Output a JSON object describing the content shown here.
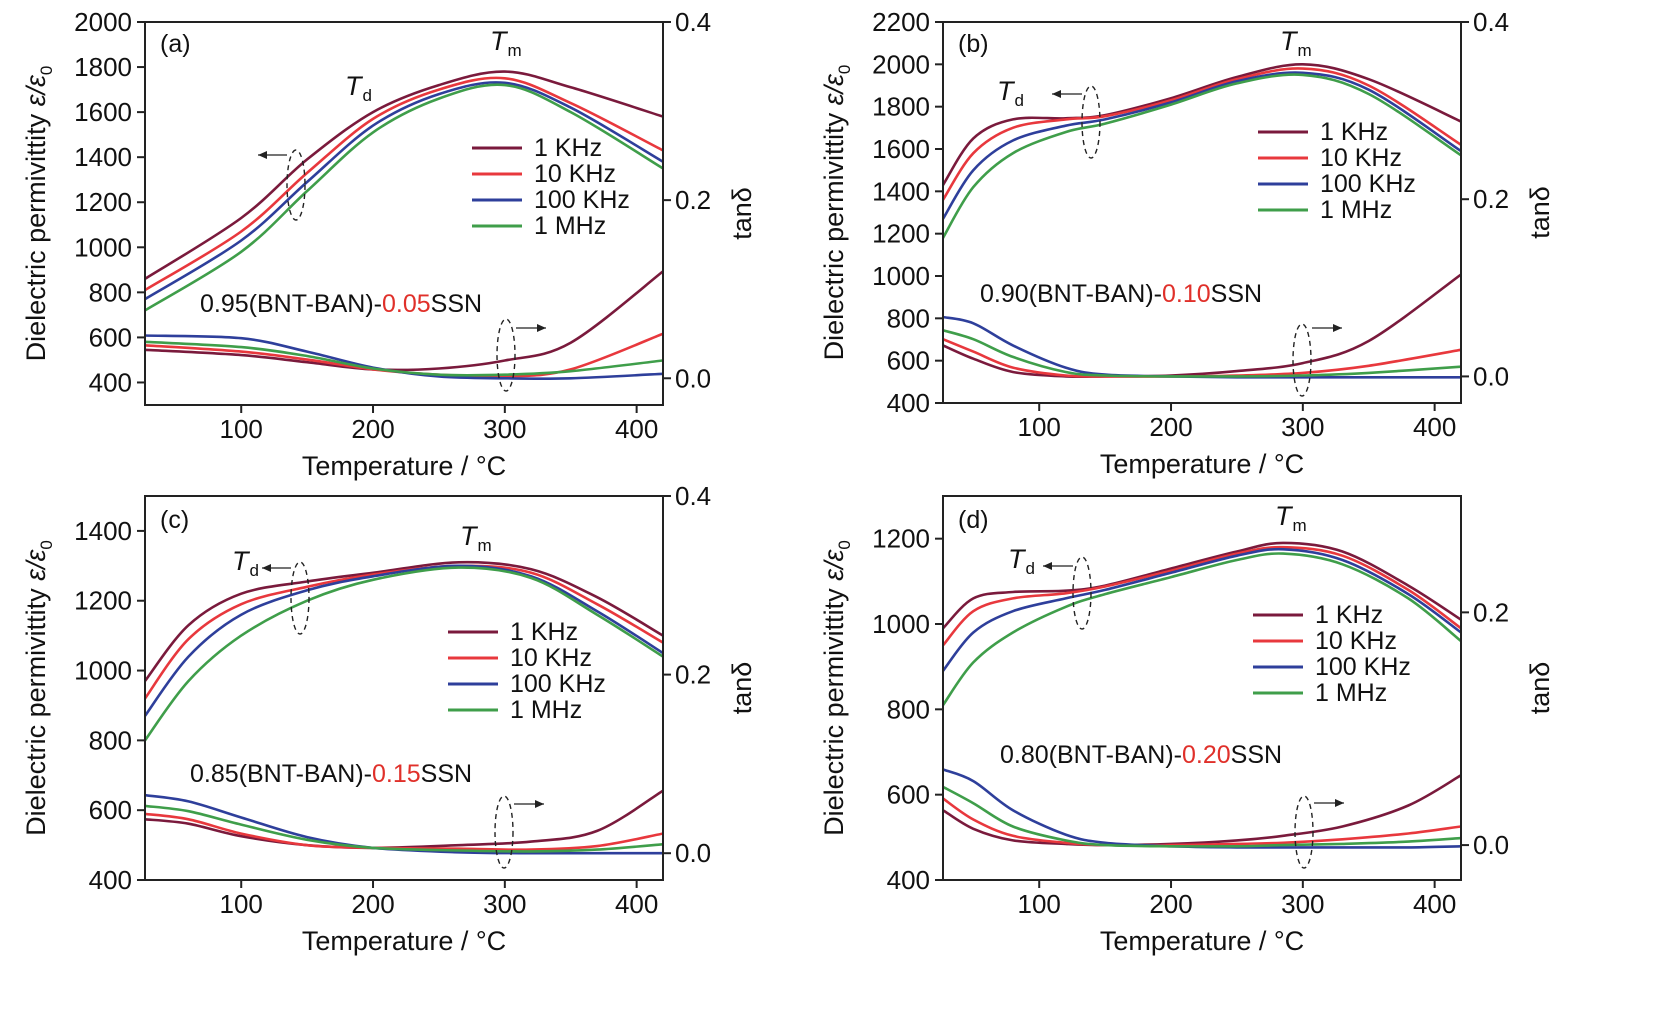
{
  "figure": {
    "xlabel": "Temperature / °C",
    "ylabel_main": "Dielectric permivittity ",
    "ylabel_sym": "ε/ε",
    "ylabel_sub": "0",
    "y2label": "tanδ",
    "td_sym": "T",
    "td_sub": "d",
    "tm_sym": "T",
    "tm_sub": "m"
  },
  "legend": [
    "1 KHz",
    "10 KHz",
    "100 KHz",
    "1 MHz"
  ],
  "colors": {
    "1 KHz": "#7a1a3c",
    "10 KHz": "#e8383d",
    "100 KHz": "#2e3f9b",
    "1 MHz": "#3f9e4a",
    "highlight": "#e0302a"
  },
  "chart_data": [
    {
      "type": "line",
      "panel": "(a)",
      "composition": {
        "prefix": "0.95(BNT-BAN)-",
        "value": "0.05",
        "suffix": "SSN"
      },
      "x_label": "Temperature / °C",
      "xlim": [
        27,
        420
      ],
      "xticks": [
        100,
        200,
        300,
        400
      ],
      "ylim": [
        300,
        2000
      ],
      "yticks": [
        400,
        600,
        800,
        1000,
        1200,
        1400,
        1600,
        1800,
        2000
      ],
      "y2lim": [
        -0.03,
        0.4
      ],
      "y2ticks": [
        "0.0",
        "0.2",
        "0.4"
      ],
      "y2tick_values": [
        0.0,
        0.2,
        0.4
      ],
      "permittivity": [
        {
          "name": "1 KHz",
          "x": [
            27,
            100,
            150,
            200,
            250,
            300,
            350,
            420
          ],
          "y": [
            860,
            1130,
            1390,
            1600,
            1720,
            1780,
            1710,
            1580
          ]
        },
        {
          "name": "10 KHz",
          "x": [
            27,
            100,
            150,
            200,
            250,
            300,
            350,
            420
          ],
          "y": [
            810,
            1070,
            1330,
            1570,
            1700,
            1750,
            1640,
            1430
          ]
        },
        {
          "name": "100 KHz",
          "x": [
            27,
            100,
            150,
            200,
            250,
            300,
            350,
            420
          ],
          "y": [
            770,
            1030,
            1290,
            1540,
            1680,
            1730,
            1620,
            1380
          ]
        },
        {
          "name": "1 MHz",
          "x": [
            27,
            100,
            150,
            200,
            250,
            300,
            350,
            420
          ],
          "y": [
            720,
            980,
            1250,
            1510,
            1660,
            1720,
            1600,
            1350
          ]
        }
      ],
      "tan_delta": [
        {
          "name": "1 KHz",
          "x": [
            27,
            100,
            150,
            200,
            250,
            300,
            350,
            420
          ],
          "y": [
            0.032,
            0.026,
            0.018,
            0.01,
            0.011,
            0.02,
            0.04,
            0.12
          ]
        },
        {
          "name": "10 KHz",
          "x": [
            27,
            100,
            150,
            200,
            250,
            300,
            350,
            420
          ],
          "y": [
            0.037,
            0.03,
            0.021,
            0.01,
            0.004,
            0.002,
            0.01,
            0.05
          ]
        },
        {
          "name": "100 KHz",
          "x": [
            27,
            100,
            150,
            200,
            250,
            300,
            350,
            420
          ],
          "y": [
            0.048,
            0.045,
            0.03,
            0.012,
            0.002,
            0.0,
            0.0,
            0.005
          ]
        },
        {
          "name": "1 MHz",
          "x": [
            27,
            100,
            150,
            200,
            250,
            300,
            350,
            420
          ],
          "y": [
            0.041,
            0.035,
            0.025,
            0.011,
            0.004,
            0.004,
            0.008,
            0.02
          ]
        }
      ]
    },
    {
      "type": "line",
      "panel": "(b)",
      "composition": {
        "prefix": "0.90(BNT-BAN)-",
        "value": "0.10",
        "suffix": "SSN"
      },
      "x_label": "Temperature / °C",
      "xlim": [
        27,
        420
      ],
      "xticks": [
        100,
        200,
        300,
        400
      ],
      "ylim": [
        400,
        2200
      ],
      "yticks": [
        400,
        600,
        800,
        1000,
        1200,
        1400,
        1600,
        1800,
        2000,
        2200
      ],
      "y2lim": [
        -0.03,
        0.4
      ],
      "y2ticks": [
        "0.0",
        "0.2",
        "0.4"
      ],
      "y2tick_values": [
        0.0,
        0.2,
        0.4
      ],
      "permittivity": [
        {
          "name": "1 KHz",
          "x": [
            27,
            50,
            80,
            120,
            150,
            200,
            250,
            300,
            350,
            420
          ],
          "y": [
            1430,
            1650,
            1740,
            1745,
            1760,
            1840,
            1940,
            2000,
            1930,
            1730
          ]
        },
        {
          "name": "10 KHz",
          "x": [
            27,
            50,
            80,
            120,
            150,
            200,
            250,
            300,
            350,
            420
          ],
          "y": [
            1360,
            1580,
            1700,
            1740,
            1755,
            1830,
            1930,
            1980,
            1900,
            1620
          ]
        },
        {
          "name": "100 KHz",
          "x": [
            27,
            50,
            80,
            120,
            150,
            200,
            250,
            300,
            350,
            420
          ],
          "y": [
            1270,
            1500,
            1640,
            1710,
            1740,
            1820,
            1920,
            1960,
            1880,
            1590
          ]
        },
        {
          "name": "1 MHz",
          "x": [
            27,
            50,
            80,
            120,
            150,
            200,
            250,
            300,
            350,
            420
          ],
          "y": [
            1180,
            1420,
            1580,
            1680,
            1720,
            1810,
            1910,
            1950,
            1860,
            1570
          ]
        }
      ],
      "tan_delta": [
        {
          "name": "1 KHz",
          "x": [
            27,
            50,
            80,
            120,
            150,
            200,
            250,
            300,
            350,
            420
          ],
          "y": [
            0.035,
            0.02,
            0.005,
            0.0,
            0.0,
            0.001,
            0.006,
            0.015,
            0.04,
            0.115
          ]
        },
        {
          "name": "10 KHz",
          "x": [
            27,
            50,
            80,
            120,
            150,
            200,
            250,
            300,
            350,
            420
          ],
          "y": [
            0.042,
            0.028,
            0.01,
            0.001,
            0.0,
            0.0,
            0.001,
            0.004,
            0.012,
            0.03
          ]
        },
        {
          "name": "100 KHz",
          "x": [
            27,
            50,
            80,
            120,
            150,
            200,
            250,
            300,
            350,
            420
          ],
          "y": [
            0.067,
            0.06,
            0.035,
            0.01,
            0.002,
            0.0,
            -0.001,
            -0.001,
            -0.001,
            -0.001
          ]
        },
        {
          "name": "1 MHz",
          "x": [
            27,
            50,
            80,
            120,
            150,
            200,
            250,
            300,
            350,
            420
          ],
          "y": [
            0.052,
            0.042,
            0.022,
            0.005,
            0.001,
            0.0,
            0.0,
            0.001,
            0.004,
            0.011
          ]
        }
      ]
    },
    {
      "type": "line",
      "panel": "(c)",
      "composition": {
        "prefix": "0.85(BNT-BAN)-",
        "value": "0.15",
        "suffix": "SSN"
      },
      "x_label": "Temperature / °C",
      "xlim": [
        27,
        420
      ],
      "xticks": [
        100,
        200,
        300,
        400
      ],
      "ylim": [
        400,
        1500
      ],
      "yticks": [
        400,
        600,
        800,
        1000,
        1200,
        1400
      ],
      "y2lim": [
        -0.03,
        0.4
      ],
      "y2ticks": [
        "0.0",
        "0.2",
        "0.4"
      ],
      "y2tick_values": [
        0.0,
        0.2,
        0.4
      ],
      "permittivity": [
        {
          "name": "1 KHz",
          "x": [
            27,
            60,
            100,
            150,
            200,
            265,
            320,
            370,
            420
          ],
          "y": [
            970,
            1130,
            1220,
            1255,
            1280,
            1310,
            1290,
            1210,
            1100
          ]
        },
        {
          "name": "10 KHz",
          "x": [
            27,
            60,
            100,
            150,
            200,
            265,
            320,
            370,
            420
          ],
          "y": [
            920,
            1090,
            1190,
            1240,
            1275,
            1300,
            1280,
            1190,
            1080
          ]
        },
        {
          "name": "100 KHz",
          "x": [
            27,
            60,
            100,
            150,
            200,
            265,
            320,
            370,
            420
          ],
          "y": [
            870,
            1040,
            1160,
            1230,
            1270,
            1300,
            1270,
            1170,
            1050
          ]
        },
        {
          "name": "1 MHz",
          "x": [
            27,
            60,
            100,
            150,
            200,
            265,
            320,
            370,
            420
          ],
          "y": [
            800,
            970,
            1100,
            1200,
            1260,
            1295,
            1265,
            1160,
            1040
          ]
        }
      ],
      "tan_delta": [
        {
          "name": "1 KHz",
          "x": [
            27,
            60,
            100,
            150,
            200,
            265,
            320,
            370,
            420
          ],
          "y": [
            0.038,
            0.033,
            0.019,
            0.009,
            0.006,
            0.009,
            0.013,
            0.025,
            0.07
          ]
        },
        {
          "name": "10 KHz",
          "x": [
            27,
            60,
            100,
            150,
            200,
            265,
            320,
            370,
            420
          ],
          "y": [
            0.044,
            0.038,
            0.022,
            0.009,
            0.006,
            0.005,
            0.004,
            0.008,
            0.022
          ]
        },
        {
          "name": "100 KHz",
          "x": [
            27,
            60,
            100,
            150,
            200,
            265,
            320,
            370,
            420
          ],
          "y": [
            0.065,
            0.058,
            0.04,
            0.018,
            0.006,
            0.001,
            0.0,
            0.0,
            0.0
          ]
        },
        {
          "name": "1 MHz",
          "x": [
            27,
            60,
            100,
            150,
            200,
            265,
            320,
            370,
            420
          ],
          "y": [
            0.053,
            0.047,
            0.032,
            0.015,
            0.006,
            0.003,
            0.002,
            0.004,
            0.01
          ]
        }
      ]
    },
    {
      "type": "line",
      "panel": "(d)",
      "composition": {
        "prefix": "0.80(BNT-BAN)-",
        "value": "0.20",
        "suffix": "SSN"
      },
      "x_label": "Temperature / °C",
      "xlim": [
        27,
        420
      ],
      "xticks": [
        100,
        200,
        300,
        400
      ],
      "ylim": [
        400,
        1300
      ],
      "yticks": [
        400,
        600,
        800,
        1000,
        1200
      ],
      "y2lim": [
        -0.03,
        0.3
      ],
      "y2ticks": [
        "0.0",
        "0.2"
      ],
      "y2tick_values": [
        0.0,
        0.2
      ],
      "permittivity": [
        {
          "name": "1 KHz",
          "x": [
            27,
            50,
            80,
            120,
            150,
            200,
            250,
            285,
            330,
            380,
            420
          ],
          "y": [
            990,
            1060,
            1075,
            1078,
            1090,
            1130,
            1170,
            1190,
            1170,
            1090,
            1010
          ]
        },
        {
          "name": "10 KHz",
          "x": [
            27,
            50,
            80,
            120,
            150,
            200,
            250,
            285,
            330,
            380,
            420
          ],
          "y": [
            950,
            1030,
            1060,
            1072,
            1088,
            1125,
            1165,
            1180,
            1160,
            1080,
            990
          ]
        },
        {
          "name": "100 KHz",
          "x": [
            27,
            50,
            80,
            120,
            150,
            200,
            250,
            285,
            330,
            380,
            420
          ],
          "y": [
            890,
            980,
            1030,
            1060,
            1080,
            1120,
            1160,
            1175,
            1150,
            1070,
            980
          ]
        },
        {
          "name": "1 MHz",
          "x": [
            27,
            50,
            80,
            120,
            150,
            200,
            250,
            285,
            330,
            380,
            420
          ],
          "y": [
            810,
            910,
            980,
            1040,
            1070,
            1110,
            1150,
            1165,
            1140,
            1060,
            960
          ]
        }
      ],
      "tan_delta": [
        {
          "name": "1 KHz",
          "x": [
            27,
            50,
            80,
            120,
            150,
            200,
            250,
            285,
            330,
            380,
            420
          ],
          "y": [
            0.03,
            0.014,
            0.004,
            0.001,
            0.0,
            0.001,
            0.004,
            0.008,
            0.016,
            0.034,
            0.06
          ]
        },
        {
          "name": "10 KHz",
          "x": [
            27,
            50,
            80,
            120,
            150,
            200,
            250,
            285,
            330,
            380,
            420
          ],
          "y": [
            0.04,
            0.022,
            0.008,
            0.002,
            0.0,
            0.0,
            0.001,
            0.002,
            0.005,
            0.01,
            0.016
          ]
        },
        {
          "name": "100 KHz",
          "x": [
            27,
            50,
            80,
            120,
            150,
            200,
            250,
            285,
            330,
            380,
            420
          ],
          "y": [
            0.065,
            0.055,
            0.03,
            0.009,
            0.002,
            -0.001,
            -0.002,
            -0.002,
            -0.002,
            -0.002,
            -0.001
          ]
        },
        {
          "name": "1 MHz",
          "x": [
            27,
            50,
            80,
            120,
            150,
            200,
            250,
            285,
            330,
            380,
            420
          ],
          "y": [
            0.05,
            0.036,
            0.016,
            0.004,
            0.0,
            -0.001,
            -0.001,
            0.0,
            0.001,
            0.003,
            0.006
          ]
        }
      ]
    }
  ]
}
